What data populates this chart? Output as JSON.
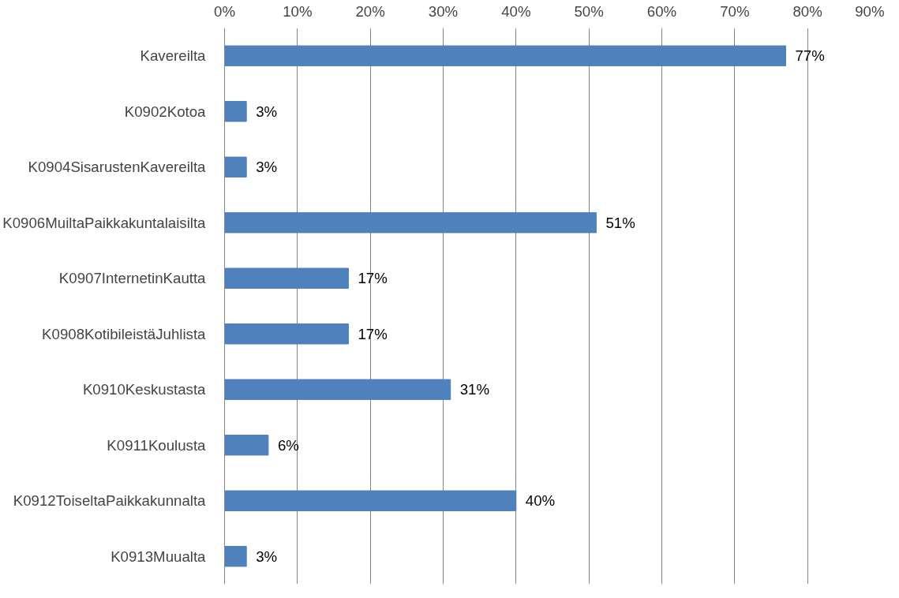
{
  "chart_data": {
    "type": "bar",
    "orientation": "horizontal",
    "categories": [
      "Kavereilta",
      "K0902Kotoa",
      "K0904SisarustenKavereilta",
      "K0906MuiltaPaikkakuntalaisilta",
      "K0907InternetinKautta",
      "K0908KotibileistäJuhlista",
      "K0910Keskustasta",
      "K0911Koulusta",
      "K0912ToiseltaPaikkakunnalta",
      "K0913Muualta"
    ],
    "values": [
      77,
      3,
      3,
      51,
      17,
      17,
      31,
      6,
      40,
      3
    ],
    "value_labels": [
      "77%",
      "3%",
      "3%",
      "51%",
      "17%",
      "17%",
      "31%",
      "6%",
      "40%",
      "3%"
    ],
    "color": "#4f81bd",
    "xlim": [
      0,
      90
    ],
    "xticks": [
      {
        "value": 0,
        "label": "0%"
      },
      {
        "value": 10,
        "label": "10%"
      },
      {
        "value": 20,
        "label": "20%"
      },
      {
        "value": 30,
        "label": "30%"
      },
      {
        "value": 40,
        "label": "40%"
      },
      {
        "value": 50,
        "label": "50%"
      },
      {
        "value": 60,
        "label": "60%"
      },
      {
        "value": 70,
        "label": "70%"
      },
      {
        "value": 80,
        "label": "80%"
      },
      {
        "value": 90,
        "label": "90%"
      }
    ],
    "grid": "x"
  }
}
